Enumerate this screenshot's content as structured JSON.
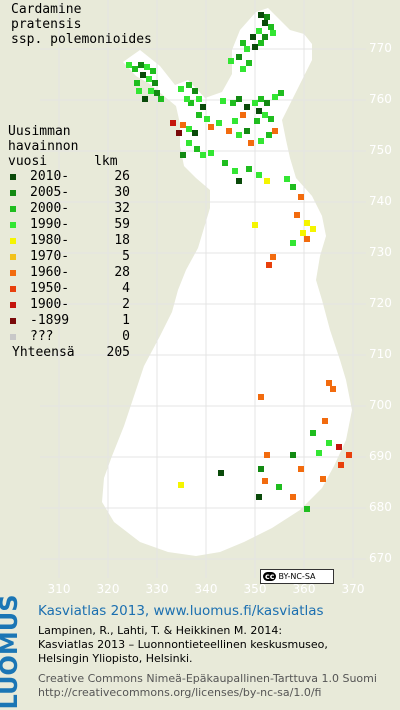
{
  "map": {
    "title_lines": [
      "Cardamine",
      "pratensis",
      "ssp. polemonioides"
    ],
    "legend_heading": [
      "Uusimman",
      "havainnon",
      "vuosi      lkm"
    ],
    "legend": [
      {
        "label": "2010-",
        "count": "26",
        "color": "#0a4a0a"
      },
      {
        "label": "2005-",
        "count": "30",
        "color": "#138a13"
      },
      {
        "label": "2000-",
        "count": "32",
        "color": "#1fbd1f"
      },
      {
        "label": "1990-",
        "count": "59",
        "color": "#33e633"
      },
      {
        "label": "1980-",
        "count": "18",
        "color": "#f5f500"
      },
      {
        "label": "1970-",
        "count": "5",
        "color": "#f2c21a"
      },
      {
        "label": "1960-",
        "count": "28",
        "color": "#f26b0e"
      },
      {
        "label": "1950-",
        "count": "4",
        "color": "#e8400c"
      },
      {
        "label": "1900-",
        "count": "2",
        "color": "#c4150d"
      },
      {
        "label": "-1899",
        "count": "1",
        "color": "#7a0a0a"
      },
      {
        "label": "???",
        "count": "0",
        "color": "#c8c8c8"
      }
    ],
    "total_label": "Yhteensä",
    "total_count": "205",
    "lat_ticks": [
      "770",
      "760",
      "750",
      "740",
      "730",
      "720",
      "710",
      "700",
      "690",
      "680",
      "670"
    ],
    "lon_ticks": [
      "310",
      "320",
      "330",
      "340",
      "350",
      "360",
      "370"
    ],
    "license_badge": {
      "cc": "cc",
      "text": "BY-NC-SA"
    }
  },
  "footer": {
    "logo": "LUOMUS",
    "title": "Kasviatlas 2013, www.luomus.fi/kasviatlas",
    "ref_line1": "Lampinen, R., Lahti, T. & Heikkinen M. 2014:",
    "ref_line2": "Kasviatlas 2013 – Luonnontieteellinen keskusmuseo,",
    "ref_line3": "Helsingin Yliopisto, Helsinki.",
    "license_line1": "Creative Commons Nimeä-Epäkaupallinen-Tarttuva 1.0 Suomi",
    "license_line2": "http://creativecommons.org/licenses/by-nc-sa/1.0/fi"
  },
  "colors": {
    "land": "#ffffff",
    "background": "#e8ead9",
    "brand_blue": "#1b76b5"
  }
}
